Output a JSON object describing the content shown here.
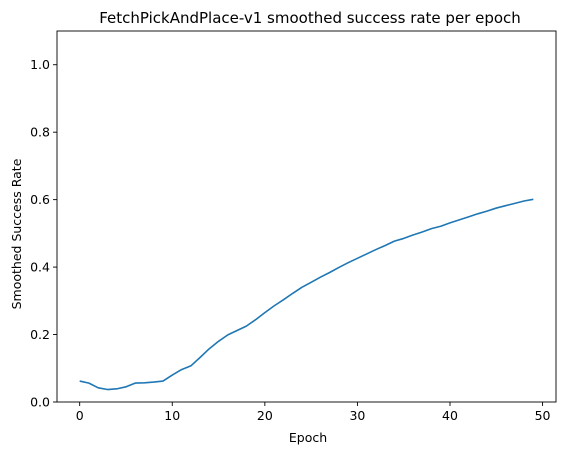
{
  "colors": {
    "line": "#1f77b4",
    "axes": "#000000",
    "background": "#ffffff"
  },
  "chart_data": {
    "type": "line",
    "title": "FetchPickAndPlace-v1 smoothed success rate per epoch",
    "xlabel": "Epoch",
    "ylabel": "Smoothed Success Rate",
    "xlim": [
      -2.45,
      51.45
    ],
    "ylim": [
      0.0,
      1.1
    ],
    "xticks": [
      0,
      10,
      20,
      30,
      40,
      50
    ],
    "yticks": [
      0.0,
      0.2,
      0.4,
      0.6,
      0.8,
      1.0
    ],
    "xtick_labels": [
      "0",
      "10",
      "20",
      "30",
      "40",
      "50"
    ],
    "ytick_labels": [
      "0.0",
      "0.2",
      "0.4",
      "0.6",
      "0.8",
      "1.0"
    ],
    "grid": false,
    "legend": "none",
    "series": [
      {
        "x": [
          0,
          1,
          2,
          3,
          4,
          5,
          6,
          7,
          8,
          9,
          10,
          11,
          12,
          13,
          14,
          15,
          16,
          17,
          18,
          19,
          20,
          21,
          22,
          23,
          24,
          25,
          26,
          27,
          28,
          29,
          30,
          31,
          32,
          33,
          34,
          35,
          36,
          37,
          38,
          39,
          40,
          41,
          42,
          43,
          44,
          45,
          46,
          47,
          48,
          49
        ],
        "values": [
          0.062,
          0.056,
          0.042,
          0.037,
          0.039,
          0.045,
          0.056,
          0.057,
          0.059,
          0.062,
          0.08,
          0.096,
          0.107,
          0.132,
          0.158,
          0.18,
          0.199,
          0.212,
          0.225,
          0.244,
          0.265,
          0.285,
          0.303,
          0.322,
          0.34,
          0.355,
          0.37,
          0.384,
          0.399,
          0.413,
          0.426,
          0.439,
          0.452,
          0.464,
          0.477,
          0.485,
          0.495,
          0.504,
          0.514,
          0.521,
          0.531,
          0.54,
          0.549,
          0.558,
          0.566,
          0.575,
          0.582,
          0.589,
          0.596,
          0.601
        ]
      }
    ]
  }
}
